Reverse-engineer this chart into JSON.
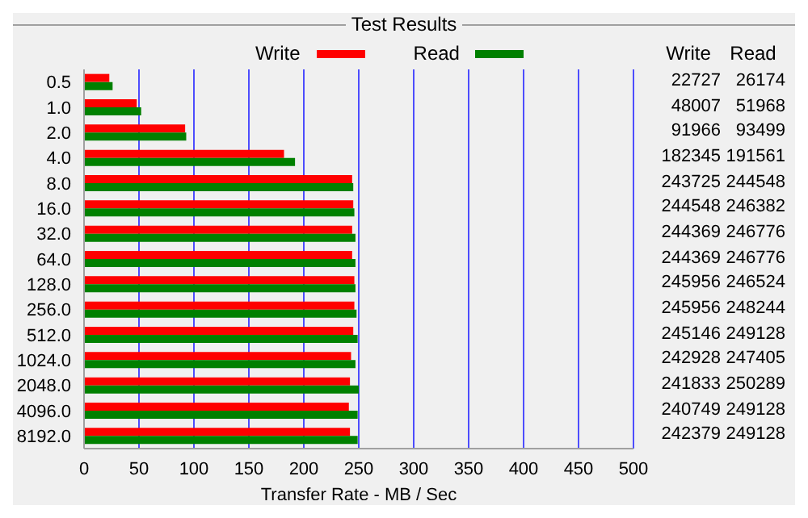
{
  "chart_data": {
    "type": "bar",
    "orientation": "horizontal",
    "title": "Test Results",
    "xlabel": "Transfer Rate - MB / Sec",
    "categories": [
      "0.5",
      "1.0",
      "2.0",
      "4.0",
      "8.0",
      "16.0",
      "32.0",
      "64.0",
      "128.0",
      "256.0",
      "512.0",
      "1024.0",
      "2048.0",
      "4096.0",
      "8192.0"
    ],
    "series": [
      {
        "name": "Write",
        "color": "#ff0000",
        "values": [
          23,
          48,
          92,
          182,
          244,
          245,
          244,
          244,
          246,
          246,
          245,
          243,
          242,
          241,
          242
        ]
      },
      {
        "name": "Read",
        "color": "#008000",
        "values": [
          26,
          52,
          93,
          192,
          245,
          246,
          247,
          247,
          247,
          248,
          249,
          247,
          250,
          249,
          249
        ]
      }
    ],
    "annotations": [
      "22727",
      "26174",
      "48007",
      "51968",
      "91966",
      "93499",
      "182345",
      "191561",
      "243725",
      "244548",
      "244548",
      "246382",
      "244369",
      "246776",
      "244369",
      "246776",
      "245956",
      "246524",
      "245956",
      "248244",
      "245146",
      "249128",
      "242928",
      "247405",
      "241833",
      "250289",
      "240749",
      "249128",
      "242379",
      "249128"
    ],
    "xlim": [
      0,
      500
    ],
    "xticks": [
      0,
      50,
      100,
      150,
      200,
      250,
      300,
      350,
      400,
      450,
      500
    ],
    "grid": "x",
    "legend": "top"
  }
}
